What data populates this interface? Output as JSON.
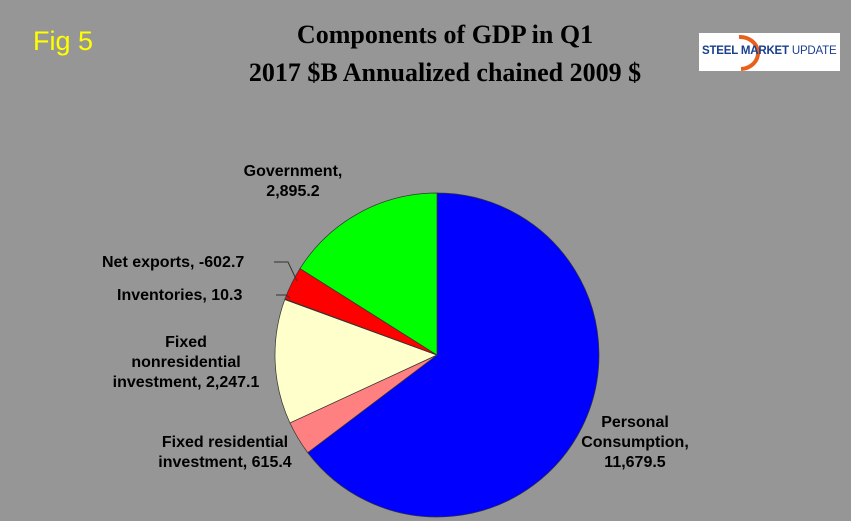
{
  "fig_label": "Fig 5",
  "logo": {
    "word1": "STEEL",
    "word2": "MARKET",
    "word3": "UPDATE"
  },
  "chart_data": {
    "type": "pie",
    "title_line1": "Components of GDP in Q1",
    "title_line2": "2017 $B Annualized chained 2009 $",
    "slices": [
      {
        "name": "Personal Consumption",
        "value": 11679.5,
        "label": "Personal Consumption, 11,679.5",
        "color": "#0000ff"
      },
      {
        "name": "Fixed residential investment",
        "value": 615.4,
        "label": "Fixed residential investment, 615.4",
        "color": "#ff8080"
      },
      {
        "name": "Fixed nonresidential investment",
        "value": 2247.1,
        "label": "Fixed nonresidential investment, 2,247.1",
        "color": "#ffffcc"
      },
      {
        "name": "Inventories",
        "value": 10.3,
        "label": "Inventories, 10.3",
        "color": "#ffffff"
      },
      {
        "name": "Net exports",
        "value": -602.7,
        "label": "Net exports, -602.7",
        "color": "#ff0000"
      },
      {
        "name": "Government",
        "value": 2895.2,
        "label": "Government, 2,895.2",
        "color": "#00ff00"
      }
    ],
    "labels_text": {
      "personal_l1": "Personal",
      "personal_l2": "Consumption,",
      "personal_l3": "11,679.5",
      "resid_l1": "Fixed residential",
      "resid_l2": "investment, 615.4",
      "nonres_l1": "Fixed",
      "nonres_l2": "nonresidential",
      "nonres_l3": "investment, 2,247.1",
      "inv": "Inventories, 10.3",
      "net": "Net exports, -602.7",
      "gov_l1": "Government,",
      "gov_l2": "2,895.2"
    }
  }
}
